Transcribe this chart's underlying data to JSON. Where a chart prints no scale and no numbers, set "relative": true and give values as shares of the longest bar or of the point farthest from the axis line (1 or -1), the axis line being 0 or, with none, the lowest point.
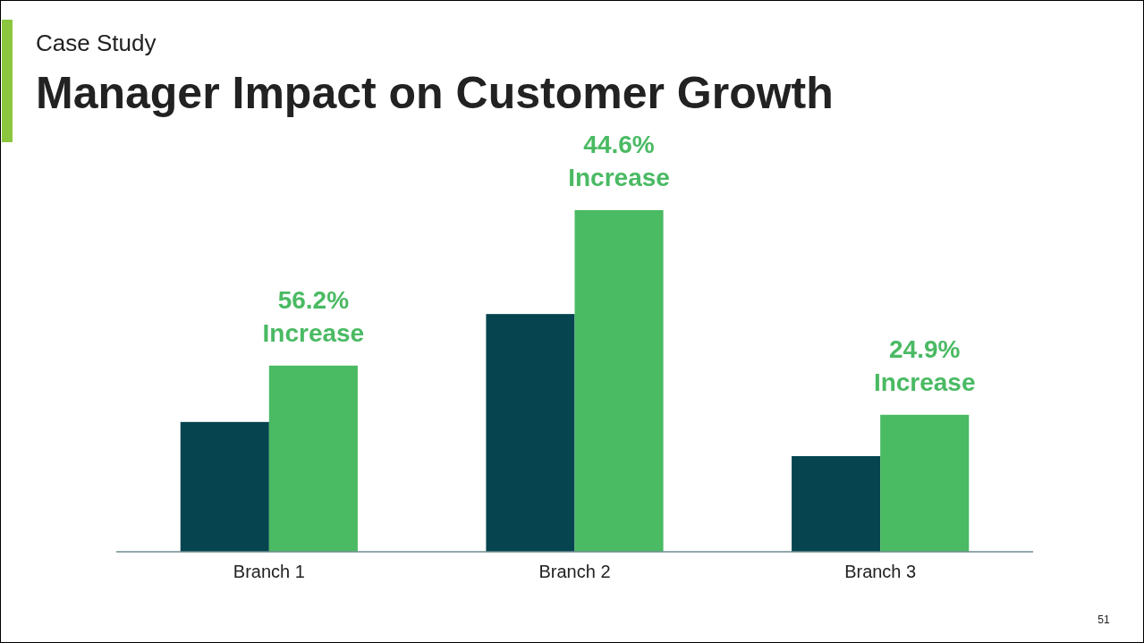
{
  "chart_data": {
    "type": "bar",
    "subtitle": "Case Study",
    "title": "Manager Impact on Customer Growth",
    "relative": true,
    "categories": [
      "Branch 1",
      "Branch 2",
      "Branch 3"
    ],
    "series": [
      {
        "color": "#06454f",
        "values": [
          0.38,
          0.696,
          0.28
        ]
      },
      {
        "color": "#4aba63",
        "values": [
          0.545,
          1,
          0.401
        ]
      }
    ],
    "annotations": [
      {
        "text": "56.2% Increase",
        "x": "Branch 1",
        "y": 0.545
      },
      {
        "text": "44.6% Increase",
        "x": "Branch 2",
        "y": 1
      },
      {
        "text": "24.9% Increase",
        "x": "Branch 3",
        "y": 0.401
      },
      "51"
    ],
    "grid": false
  }
}
